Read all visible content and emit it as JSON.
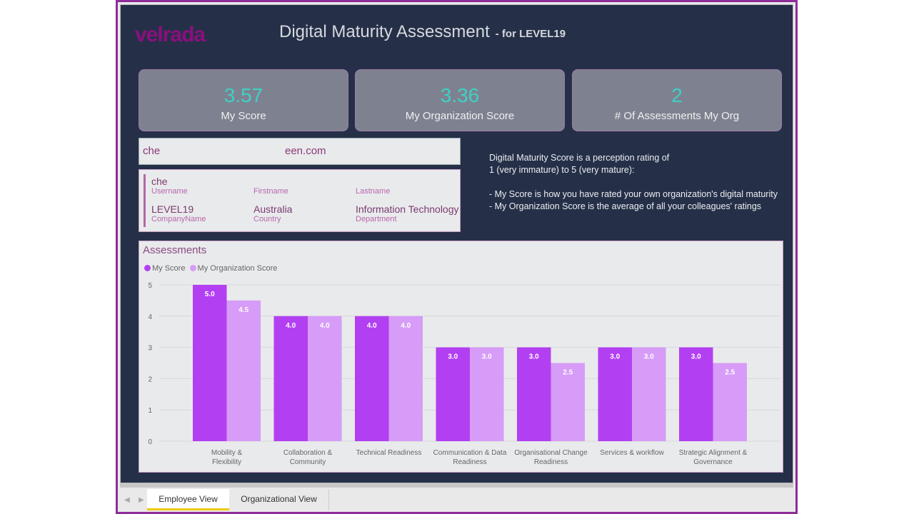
{
  "header": {
    "logo": "velrada",
    "title": "Digital Maturity Assessment",
    "subtitle": "- for LEVEL19"
  },
  "kpis": [
    {
      "value": "3.57",
      "label": "My Score"
    },
    {
      "value": "3.36",
      "label": "My Organization Score"
    },
    {
      "value": "2",
      "label": "# Of Assessments My Org"
    }
  ],
  "email": {
    "part1": "che",
    "part2": "een.com"
  },
  "profile": {
    "username": {
      "value": "che",
      "label": "Username"
    },
    "firstname": {
      "value": "",
      "label": "Firstname"
    },
    "lastname": {
      "value": "",
      "label": "Lastname"
    },
    "company": {
      "value": "LEVEL19",
      "label": "CompanyName"
    },
    "country": {
      "value": "Australia",
      "label": "Country"
    },
    "department": {
      "value": "Information Technology",
      "label": "Department"
    }
  },
  "info_text": "Digital Maturity Score is a perception rating of\n1 (very immature) to 5 (very mature):\n\n- My Score is how you have rated your own organization's digital maturity\n- My Organization Score is the average of all your colleagues' ratings",
  "colors": {
    "my_score": "#b240f2",
    "org_score": "#d69cf7",
    "kpi_value": "#3fd0c4",
    "brand": "#8a0f7e"
  },
  "chart_data": {
    "type": "bar",
    "title": "Assessments",
    "categories": [
      "Mobility & Flexibility",
      "Collaboration & Community",
      "Technical Readiness",
      "Communication & Data Readiness",
      "Organisational Change Readiness",
      "Services & workflow",
      "Strategic Alignment & Governance"
    ],
    "series": [
      {
        "name": "My Score",
        "values": [
          5.0,
          4.0,
          4.0,
          3.0,
          3.0,
          3.0,
          3.0
        ]
      },
      {
        "name": "My Organization Score",
        "values": [
          4.5,
          4.0,
          4.0,
          3.0,
          2.5,
          3.0,
          2.5
        ]
      }
    ],
    "yticks": [
      "0",
      "1",
      "2",
      "3",
      "4",
      "5"
    ],
    "ylim": [
      0,
      5
    ],
    "legend": "top-left",
    "grid": true
  },
  "tabs": [
    {
      "label": "Employee View",
      "active": true
    },
    {
      "label": "Organizational View",
      "active": false
    }
  ]
}
